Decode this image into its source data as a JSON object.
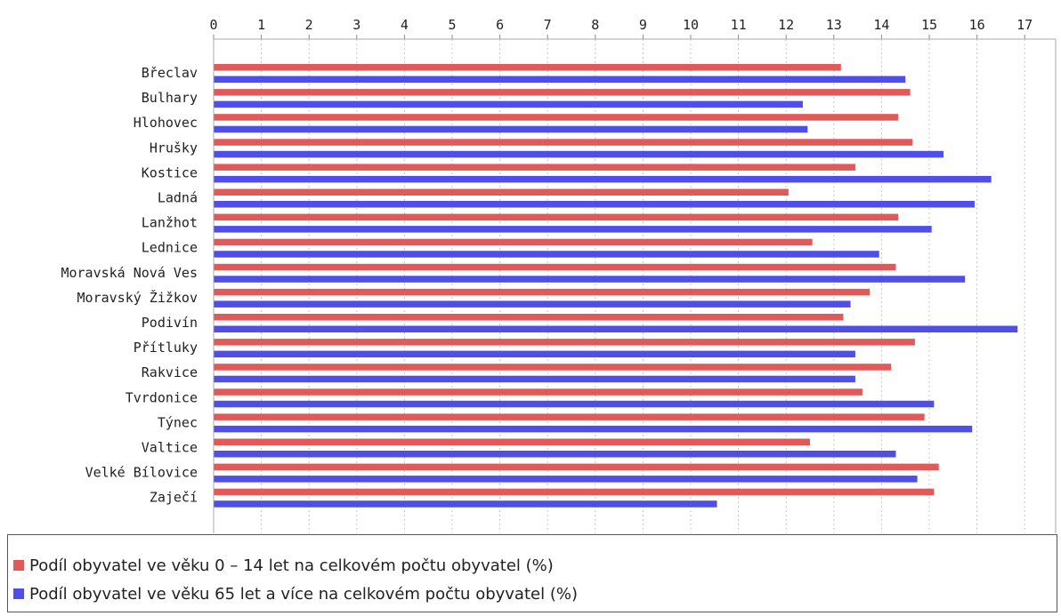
{
  "chart_data": {
    "type": "bar",
    "orientation": "horizontal",
    "title": "",
    "xlabel": "",
    "ylabel": "",
    "xlim": [
      0,
      17.6
    ],
    "ticks": [
      0,
      1,
      2,
      3,
      4,
      5,
      6,
      7,
      8,
      9,
      10,
      11,
      12,
      13,
      14,
      15,
      16,
      17
    ],
    "grid": true,
    "legend_position": "bottom",
    "categories": [
      "Břeclav",
      "Bulhary",
      "Hlohovec",
      "Hrušky",
      "Kostice",
      "Ladná",
      "Lanžhot",
      "Lednice",
      "Moravská Nová Ves",
      "Moravský Žižkov",
      "Podivín",
      "Přítluky",
      "Rakvice",
      "Tvrdonice",
      "Týnec",
      "Valtice",
      "Velké Bílovice",
      "Zaječí"
    ],
    "series": [
      {
        "name": "Podíl obyvatel ve věku 0 – 14 let na celkovém počtu obyvatel (%)",
        "color": "#e05a5a",
        "values": [
          13.15,
          14.6,
          14.35,
          14.65,
          13.45,
          12.05,
          14.35,
          12.55,
          14.3,
          13.75,
          13.2,
          14.7,
          14.2,
          13.6,
          14.9,
          12.5,
          15.2,
          15.1
        ]
      },
      {
        "name": "Podíl obyvatel ve věku 65 let a více na celkovém počtu obyvatel (%)",
        "color": "#4f4fe8",
        "values": [
          14.5,
          12.35,
          12.45,
          15.3,
          16.3,
          15.95,
          15.05,
          13.95,
          15.75,
          13.35,
          16.85,
          13.45,
          13.45,
          15.1,
          15.9,
          14.3,
          14.75,
          10.55
        ]
      }
    ]
  }
}
